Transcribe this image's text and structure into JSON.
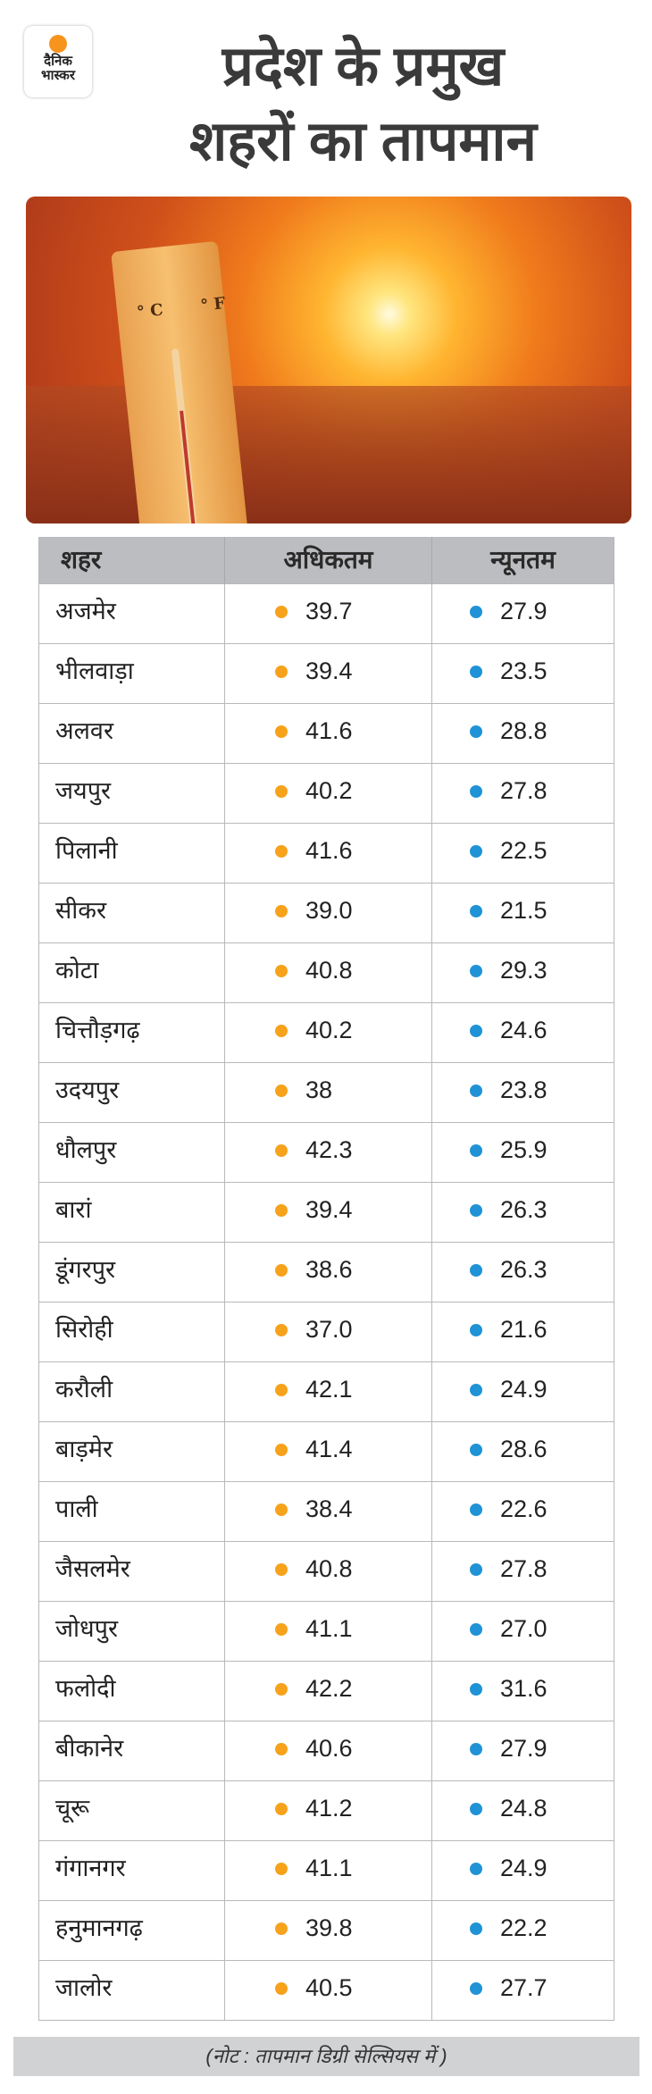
{
  "brand": {
    "logo_text_line1": "दैनिक",
    "logo_text_line2": "भास्कर"
  },
  "title": {
    "line1": "प्रदेश के प्रमुख",
    "line2": "शहरों का तापमान"
  },
  "hero": {
    "thermometer_units": "°C °F"
  },
  "colors": {
    "max_dot": "#f7a21b",
    "min_dot": "#1f93d6",
    "header_bg": "#bcbdc0",
    "note_bg": "#d1d2d4"
  },
  "table": {
    "headers": [
      "शहर",
      "अधिकतम",
      "न्यूनतम"
    ],
    "rows": [
      [
        "अजमेर",
        "39.7",
        "27.9"
      ],
      [
        "भीलवाड़ा",
        "39.4",
        "23.5"
      ],
      [
        "अलवर",
        "41.6",
        "28.8"
      ],
      [
        "जयपुर",
        "40.2",
        "27.8"
      ],
      [
        "पिलानी",
        "41.6",
        "22.5"
      ],
      [
        "सीकर",
        "39.0",
        "21.5"
      ],
      [
        "कोटा",
        "40.8",
        "29.3"
      ],
      [
        "चित्तौड़गढ़",
        "40.2",
        "24.6"
      ],
      [
        "उदयपुर",
        "38",
        "23.8"
      ],
      [
        "धौलपुर",
        "42.3",
        "25.9"
      ],
      [
        "बारां",
        "39.4",
        "26.3"
      ],
      [
        "डूंगरपुर",
        "38.6",
        "26.3"
      ],
      [
        "सिरोही",
        "37.0",
        "21.6"
      ],
      [
        "करौली",
        "42.1",
        "24.9"
      ],
      [
        "बाड़मेर",
        "41.4",
        "28.6"
      ],
      [
        "पाली",
        "38.4",
        "22.6"
      ],
      [
        "जैसलमेर",
        "40.8",
        "27.8"
      ],
      [
        "जोधपुर",
        "41.1",
        "27.0"
      ],
      [
        "फलोदी",
        "42.2",
        "31.6"
      ],
      [
        "बीकानेर",
        "40.6",
        "27.9"
      ],
      [
        "चूरू",
        "41.2",
        "24.8"
      ],
      [
        "गंगानगर",
        "41.1",
        "24.9"
      ],
      [
        "हनुमानगढ़",
        "39.8",
        "22.2"
      ],
      [
        "जालोर",
        "40.5",
        "27.7"
      ]
    ]
  },
  "note": "(नोट : तापमान डिग्री सेल्सियस में )"
}
